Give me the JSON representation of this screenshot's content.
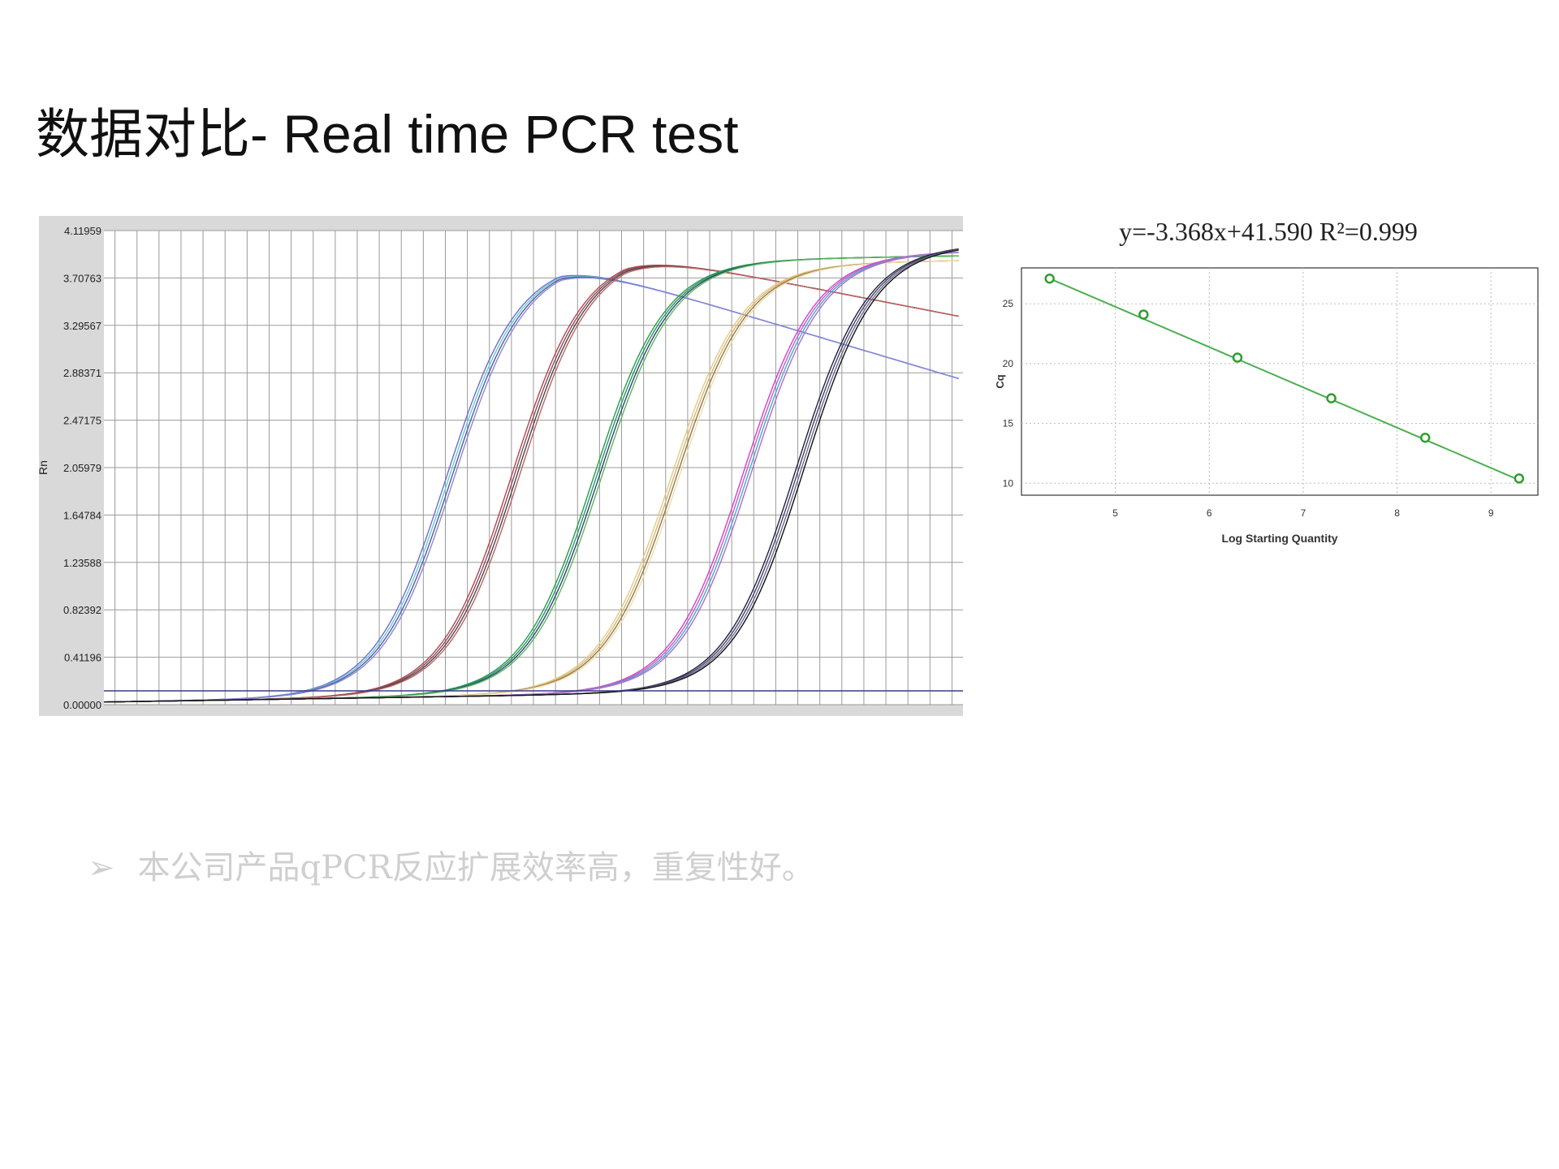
{
  "slide": {
    "title": "数据对比- Real time PCR test",
    "bullet_marker": "➢",
    "bullet_text": "本公司产品qPCR反应扩展效率高，重复性好。"
  },
  "chart_data": [
    {
      "type": "line",
      "title": "",
      "xlabel": "",
      "ylabel": "Rn",
      "ylim": [
        0,
        4.11959
      ],
      "yticks": [
        "4.11959",
        "3.70763",
        "3.29567",
        "2.88371",
        "2.47175",
        "2.05979",
        "1.64784",
        "1.23588",
        "0.82392",
        "0.41196",
        "0.00000"
      ],
      "xlim": [
        1,
        40
      ],
      "vertical_gridlines": 39,
      "threshold": 0.12,
      "grid": true,
      "colors": {
        "frame_bg": "#d9d9d9",
        "plot_bg": "#ffffff",
        "grid": "#9a9a9a",
        "threshold": "#3a3a8a"
      },
      "series_groups": [
        {
          "midpoint": 16.7,
          "plateau": 3.78,
          "slope": -0.003,
          "colors": [
            "#6b6bd6",
            "#66cccc",
            "#5a5a9a",
            "#8888dd"
          ]
        },
        {
          "midpoint": 19.7,
          "plateau": 3.84,
          "slope": -0.002,
          "colors": [
            "#b54545",
            "#8a4a6a",
            "#4a4a4a",
            "#c06060"
          ]
        },
        {
          "midpoint": 23.4,
          "plateau": 3.76,
          "slope": 0.0,
          "colors": [
            "#2a9a4a",
            "#229966",
            "#3b3b7a",
            "#55bb55"
          ]
        },
        {
          "midpoint": 26.9,
          "plateau": 3.72,
          "slope": 0.0,
          "colors": [
            "#e5c98a",
            "#d9b56f",
            "#8a7a4a",
            "#f0dcaa"
          ]
        },
        {
          "midpoint": 30.2,
          "plateau": 3.8,
          "slope": 0.0,
          "colors": [
            "#d040d0",
            "#c060c0",
            "#40b0c0",
            "#b06ad0"
          ]
        },
        {
          "midpoint": 32.6,
          "plateau": 3.86,
          "slope": 0.0,
          "colors": [
            "#222244",
            "#444466",
            "#6a6a90",
            "#111111"
          ]
        }
      ]
    },
    {
      "type": "scatter",
      "title": "y=-3.368x+41.590  R²=0.999",
      "xlabel": "Log Starting Quantity",
      "ylabel": "Cq",
      "xlim": [
        4,
        9.5
      ],
      "ylim": [
        9,
        28
      ],
      "xticks": [
        "5",
        "6",
        "7",
        "8",
        "9"
      ],
      "yticks": [
        "10",
        "15",
        "20",
        "25"
      ],
      "x": [
        4.3,
        5.3,
        6.3,
        7.3,
        8.3,
        9.3
      ],
      "y": [
        27.1,
        24.1,
        20.5,
        17.1,
        13.8,
        10.4
      ],
      "fit": {
        "slope": -3.368,
        "intercept": 41.59,
        "r2": 0.999
      },
      "grid": true,
      "colors": {
        "line": "#4caf50",
        "marker": "#2e9e2e",
        "grid": "#bbbbbb"
      }
    }
  ]
}
